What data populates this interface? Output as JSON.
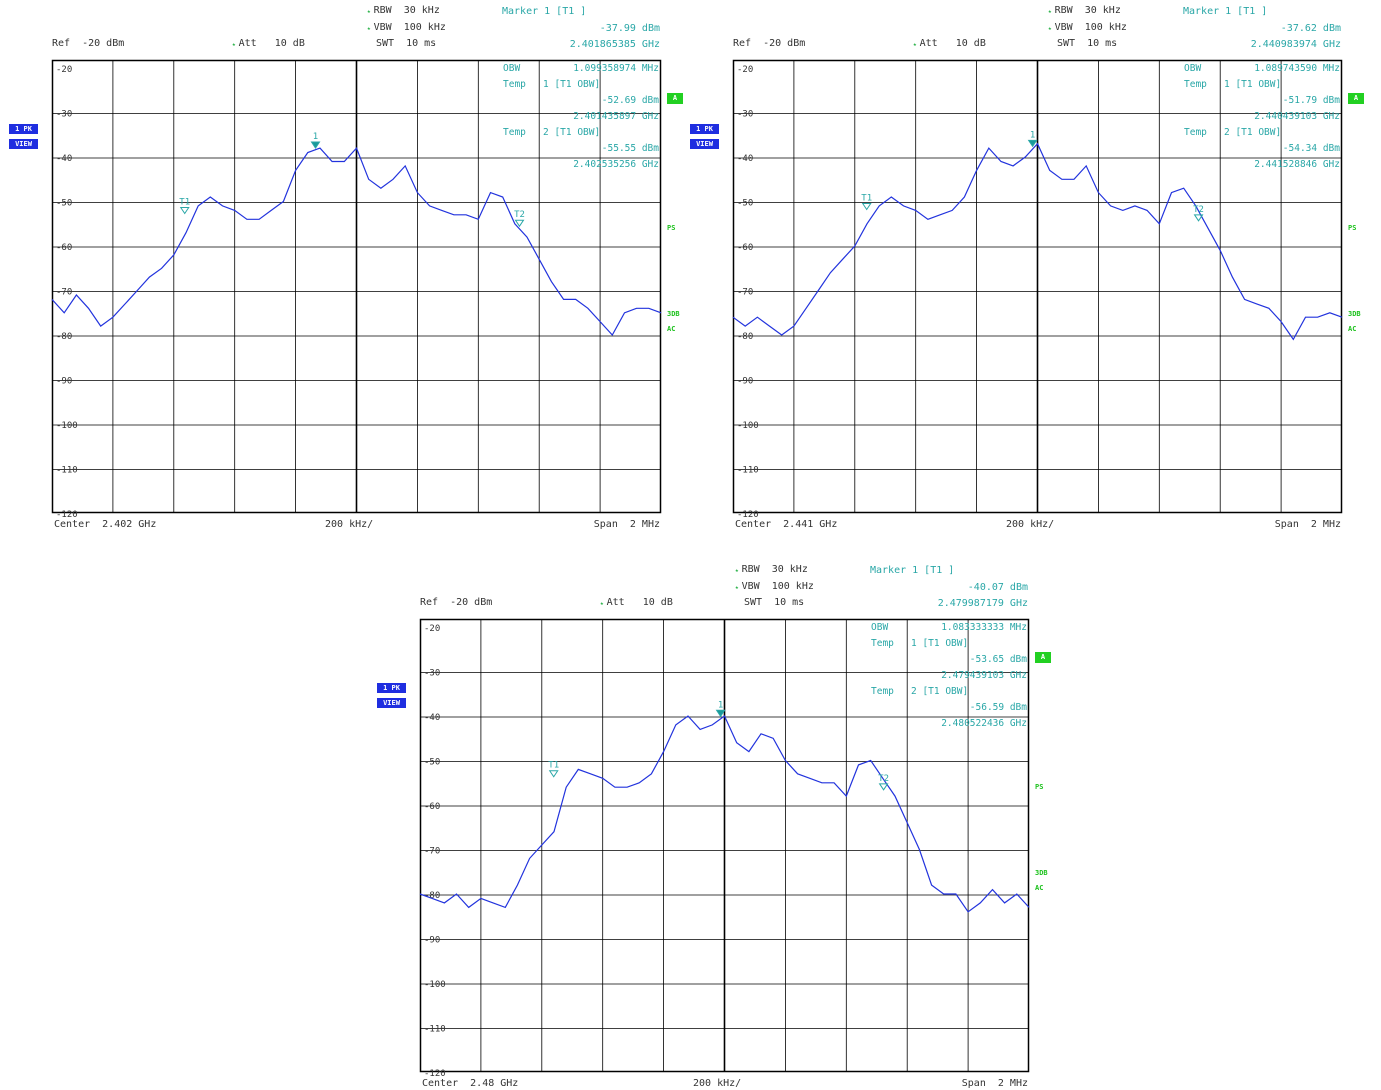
{
  "chart_data": [
    {
      "type": "line",
      "header": {
        "ref": "Ref  -20 dBm",
        "att": "Att   10 dB",
        "rbw": "RBW  30 kHz",
        "vbw": "VBW  100 kHz",
        "swt": "SWT  10 ms",
        "marker_title": "Marker 1 [T1 ]",
        "marker_level": "-37.99 dBm",
        "marker_freq": "2.401865385 GHz"
      },
      "annotations": {
        "obw_label": "OBW",
        "obw_value": "1.099358974 MHz",
        "temp1_label": "Temp",
        "temp1_trace": "1 [T1 OBW]",
        "temp1_level": "-52.69 dBm",
        "temp1_freq": "2.401435897 GHz",
        "temp2_label": "Temp",
        "temp2_trace": "2 [T1 OBW]",
        "temp2_level": "-55.55 dBm",
        "temp2_freq": "2.402535256 GHz"
      },
      "footer": {
        "center": "Center  2.402 GHz",
        "div": "200 kHz/",
        "span": "Span  2 MHz"
      },
      "y_ticks": [
        "-20",
        "-30",
        "-40",
        "-50",
        "-60",
        "-70",
        "-80",
        "-90",
        "-100",
        "-110",
        "-120"
      ],
      "ylim": [
        -120,
        -20
      ],
      "xlim": [
        2.401,
        2.403
      ],
      "xlabel": "",
      "ylabel": "",
      "trace_color": "#2233dd",
      "x": [
        2.401,
        2.40104,
        2.40108,
        2.40112,
        2.40116,
        2.4012,
        2.40124,
        2.40128,
        2.40132,
        2.40136,
        2.4014,
        2.40144,
        2.40148,
        2.40152,
        2.40156,
        2.4016,
        2.40164,
        2.40168,
        2.40172,
        2.40176,
        2.4018,
        2.40184,
        2.40188,
        2.40192,
        2.40196,
        2.402,
        2.40204,
        2.40208,
        2.40212,
        2.40216,
        2.4022,
        2.40224,
        2.40228,
        2.40232,
        2.40236,
        2.4024,
        2.40244,
        2.40248,
        2.40252,
        2.40256,
        2.4026,
        2.40264,
        2.40268,
        2.40272,
        2.40276,
        2.4028,
        2.40284,
        2.40288,
        2.40292,
        2.40296,
        2.403
      ],
      "values": [
        -72,
        -75,
        -71,
        -74,
        -78,
        -76,
        -73,
        -70,
        -67,
        -65,
        -62,
        -57,
        -51,
        -49,
        -51,
        -52,
        -54,
        -54,
        -52,
        -50,
        -43,
        -39,
        -38,
        -41,
        -41,
        -38,
        -45,
        -47,
        -45,
        -42,
        -48,
        -51,
        -52,
        -53,
        -53,
        -54,
        -48,
        -49,
        -55,
        -58,
        -63,
        -68,
        -72,
        -72,
        -74,
        -77,
        -80,
        -75,
        -74,
        -74,
        -75
      ],
      "markers": [
        {
          "label": "1",
          "x": 2.401865385,
          "y": -37.99,
          "filled": true
        },
        {
          "label": "T1",
          "x": 2.401435897,
          "y": -52.69,
          "filled": false
        },
        {
          "label": "T2",
          "x": 2.402535256,
          "y": -55.55,
          "filled": false
        }
      ],
      "side_left": [
        "1 PK",
        "VIEW"
      ],
      "side_right": [
        "A",
        "PS",
        "3DB",
        "AC"
      ]
    },
    {
      "type": "line",
      "header": {
        "ref": "Ref  -20 dBm",
        "att": "Att   10 dB",
        "rbw": "RBW  30 kHz",
        "vbw": "VBW  100 kHz",
        "swt": "SWT  10 ms",
        "marker_title": "Marker 1 [T1 ]",
        "marker_level": "-37.62 dBm",
        "marker_freq": "2.440983974 GHz"
      },
      "annotations": {
        "obw_label": "OBW",
        "obw_value": "1.089743590 MHz",
        "temp1_label": "Temp",
        "temp1_trace": "1 [T1 OBW]",
        "temp1_level": "-51.79 dBm",
        "temp1_freq": "2.440439103 GHz",
        "temp2_label": "Temp",
        "temp2_trace": "2 [T1 OBW]",
        "temp2_level": "-54.34 dBm",
        "temp2_freq": "2.441528846 GHz"
      },
      "footer": {
        "center": "Center  2.441 GHz",
        "div": "200 kHz/",
        "span": "Span  2 MHz"
      },
      "y_ticks": [
        "-20",
        "-30",
        "-40",
        "-50",
        "-60",
        "-70",
        "-80",
        "-90",
        "-100",
        "-110",
        "-120"
      ],
      "ylim": [
        -120,
        -20
      ],
      "xlim": [
        2.44,
        2.442
      ],
      "xlabel": "",
      "ylabel": "",
      "trace_color": "#2233dd",
      "x": [
        2.44,
        2.44004,
        2.44008,
        2.44012,
        2.44016,
        2.4402,
        2.44024,
        2.44028,
        2.44032,
        2.44036,
        2.4404,
        2.44044,
        2.44048,
        2.44052,
        2.44056,
        2.4406,
        2.44064,
        2.44068,
        2.44072,
        2.44076,
        2.4408,
        2.44084,
        2.44088,
        2.44092,
        2.44096,
        2.441,
        2.44104,
        2.44108,
        2.44112,
        2.44116,
        2.4412,
        2.44124,
        2.44128,
        2.44132,
        2.44136,
        2.4414,
        2.44144,
        2.44148,
        2.44152,
        2.44156,
        2.4416,
        2.44164,
        2.44168,
        2.44172,
        2.44176,
        2.4418,
        2.44184,
        2.44188,
        2.44192,
        2.44196,
        2.442
      ],
      "values": [
        -76,
        -78,
        -76,
        -78,
        -80,
        -78,
        -74,
        -70,
        -66,
        -63,
        -60,
        -55,
        -51,
        -49,
        -51,
        -52,
        -54,
        -53,
        -52,
        -49,
        -43,
        -38,
        -41,
        -42,
        -40,
        -37,
        -43,
        -45,
        -45,
        -42,
        -48,
        -51,
        -52,
        -51,
        -52,
        -55,
        -48,
        -47,
        -51,
        -56,
        -61,
        -67,
        -72,
        -73,
        -74,
        -77,
        -81,
        -76,
        -76,
        -75,
        -76
      ],
      "markers": [
        {
          "label": "1",
          "x": 2.440983974,
          "y": -37.62,
          "filled": true
        },
        {
          "label": "T1",
          "x": 2.440439103,
          "y": -51.79,
          "filled": false
        },
        {
          "label": "T2",
          "x": 2.441528846,
          "y": -54.34,
          "filled": false
        }
      ],
      "side_left": [
        "1 PK",
        "VIEW"
      ],
      "side_right": [
        "A",
        "PS",
        "3DB",
        "AC"
      ]
    },
    {
      "type": "line",
      "header": {
        "ref": "Ref  -20 dBm",
        "att": "Att   10 dB",
        "rbw": "RBW  30 kHz",
        "vbw": "VBW  100 kHz",
        "swt": "SWT  10 ms",
        "marker_title": "Marker 1 [T1 ]",
        "marker_level": "-40.07 dBm",
        "marker_freq": "2.479987179 GHz"
      },
      "annotations": {
        "obw_label": "OBW",
        "obw_value": "1.083333333 MHz",
        "temp1_label": "Temp",
        "temp1_trace": "1 [T1 OBW]",
        "temp1_level": "-53.65 dBm",
        "temp1_freq": "2.479439103 GHz",
        "temp2_label": "Temp",
        "temp2_trace": "2 [T1 OBW]",
        "temp2_level": "-56.59 dBm",
        "temp2_freq": "2.480522436 GHz"
      },
      "footer": {
        "center": "Center  2.48 GHz",
        "div": "200 kHz/",
        "span": "Span  2 MHz"
      },
      "y_ticks": [
        "-20",
        "-30",
        "-40",
        "-50",
        "-60",
        "-70",
        "-80",
        "-90",
        "-100",
        "-110",
        "-120"
      ],
      "ylim": [
        -120,
        -20
      ],
      "xlim": [
        2.479,
        2.481
      ],
      "xlabel": "",
      "ylabel": "",
      "trace_color": "#2233dd",
      "x": [
        2.479,
        2.47904,
        2.47908,
        2.47912,
        2.47916,
        2.4792,
        2.47924,
        2.47928,
        2.47932,
        2.47936,
        2.4794,
        2.47944,
        2.47948,
        2.47952,
        2.47956,
        2.4796,
        2.47964,
        2.47968,
        2.47972,
        2.47976,
        2.4798,
        2.47984,
        2.47988,
        2.47992,
        2.47996,
        2.48,
        2.48004,
        2.48008,
        2.48012,
        2.48016,
        2.4802,
        2.48024,
        2.48028,
        2.48032,
        2.48036,
        2.4804,
        2.48044,
        2.48048,
        2.48052,
        2.48056,
        2.4806,
        2.48064,
        2.48068,
        2.48072,
        2.48076,
        2.4808,
        2.48084,
        2.48088,
        2.48092,
        2.48096,
        2.481
      ],
      "values": [
        -80,
        -81,
        -82,
        -80,
        -83,
        -81,
        -82,
        -83,
        -78,
        -72,
        -69,
        -66,
        -56,
        -52,
        -53,
        -54,
        -56,
        -56,
        -55,
        -53,
        -48,
        -42,
        -40,
        -43,
        -42,
        -40,
        -46,
        -48,
        -44,
        -45,
        -50,
        -53,
        -54,
        -55,
        -55,
        -58,
        -51,
        -50,
        -54,
        -58,
        -64,
        -70,
        -78,
        -80,
        -80,
        -84,
        -82,
        -79,
        -82,
        -80,
        -83
      ],
      "markers": [
        {
          "label": "1",
          "x": 2.479987179,
          "y": -40.07,
          "filled": true
        },
        {
          "label": "T1",
          "x": 2.479439103,
          "y": -53.65,
          "filled": false
        },
        {
          "label": "T2",
          "x": 2.480522436,
          "y": -56.59,
          "filled": false
        }
      ],
      "side_left": [
        "1 PK",
        "VIEW"
      ],
      "side_right": [
        "A",
        "PS",
        "3DB",
        "AC"
      ]
    }
  ]
}
